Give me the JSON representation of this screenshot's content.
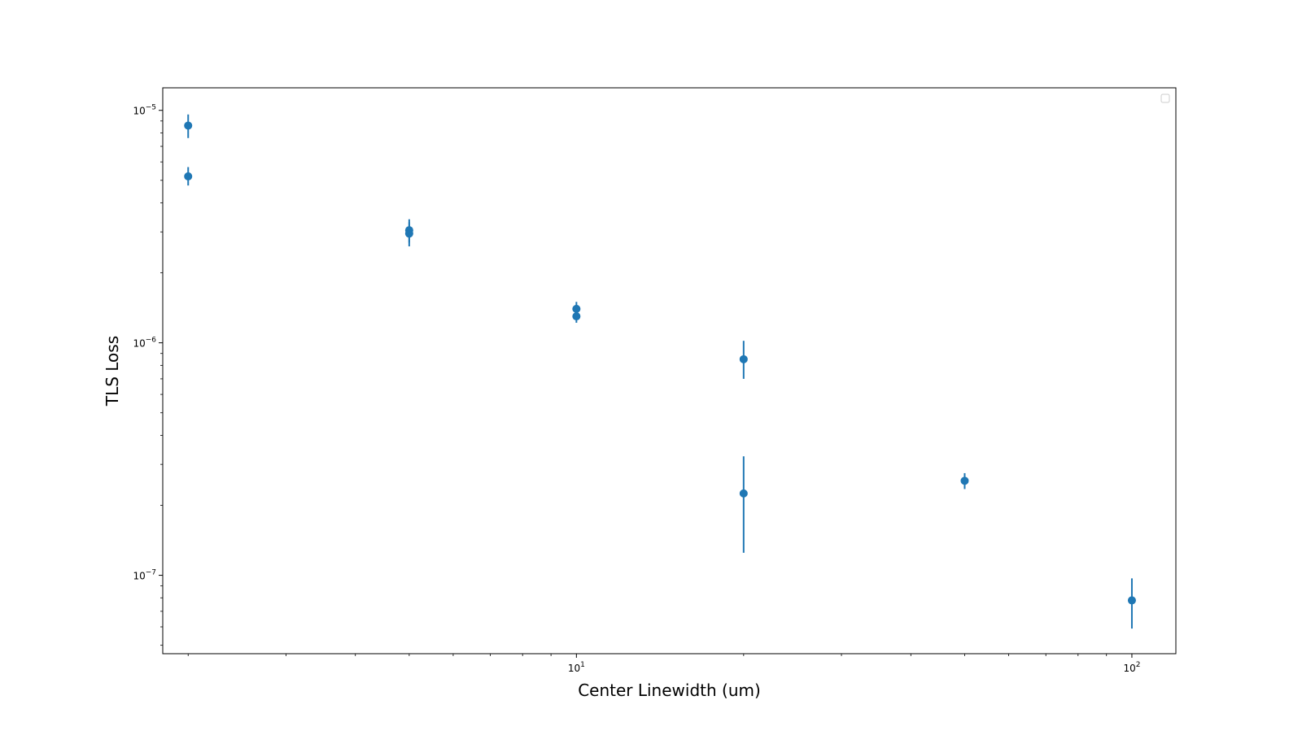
{
  "chart_data": {
    "type": "scatter",
    "title": "",
    "xlabel": "Center Linewidth (um)",
    "ylabel": "TLS Loss",
    "xscale": "log",
    "yscale": "log",
    "xlim": [
      1.8,
      120
    ],
    "ylim": [
      4.6e-08,
      1.25e-05
    ],
    "grid": false,
    "legend": {
      "placement": "top-right",
      "entries": []
    },
    "marker_color": "#1f77b4",
    "x_major_ticks": [
      {
        "value": 10,
        "base": "10",
        "exp": "1"
      },
      {
        "value": 100,
        "base": "10",
        "exp": "2"
      }
    ],
    "x_minor_ticks": [
      2,
      3,
      4,
      5,
      6,
      7,
      8,
      9,
      20,
      30,
      40,
      50,
      60,
      70,
      80,
      90
    ],
    "y_major_ticks": [
      {
        "value": 1e-07,
        "base": "10",
        "exp": "−7"
      },
      {
        "value": 1e-06,
        "base": "10",
        "exp": "−6"
      },
      {
        "value": 1e-05,
        "base": "10",
        "exp": "−5"
      }
    ],
    "y_minor_ticks": [
      5e-08,
      6e-08,
      7e-08,
      8e-08,
      9e-08,
      2e-07,
      3e-07,
      4e-07,
      5e-07,
      6e-07,
      7e-07,
      8e-07,
      9e-07,
      2e-06,
      3e-06,
      4e-06,
      5e-06,
      6e-06,
      7e-06,
      8e-06,
      9e-06
    ],
    "points": [
      {
        "x": 2,
        "y": 8.6e-06,
        "ylow": 7.6e-06,
        "yhigh": 9.6e-06
      },
      {
        "x": 2,
        "y": 5.2e-06,
        "ylow": 4.75e-06,
        "yhigh": 5.7e-06
      },
      {
        "x": 5,
        "y": 3.05e-06,
        "ylow": 2.7e-06,
        "yhigh": 3.4e-06
      },
      {
        "x": 5,
        "y": 2.95e-06,
        "ylow": 2.6e-06,
        "yhigh": 3.3e-06
      },
      {
        "x": 10,
        "y": 1.4e-06,
        "ylow": 1.3e-06,
        "yhigh": 1.5e-06
      },
      {
        "x": 10,
        "y": 1.3e-06,
        "ylow": 1.22e-06,
        "yhigh": 1.38e-06
      },
      {
        "x": 20,
        "y": 8.5e-07,
        "ylow": 7e-07,
        "yhigh": 1.02e-06
      },
      {
        "x": 20,
        "y": 2.25e-07,
        "ylow": 1.25e-07,
        "yhigh": 3.25e-07
      },
      {
        "x": 50,
        "y": 2.55e-07,
        "ylow": 2.35e-07,
        "yhigh": 2.75e-07
      },
      {
        "x": 100,
        "y": 7.8e-08,
        "ylow": 5.9e-08,
        "yhigh": 9.7e-08
      }
    ]
  }
}
